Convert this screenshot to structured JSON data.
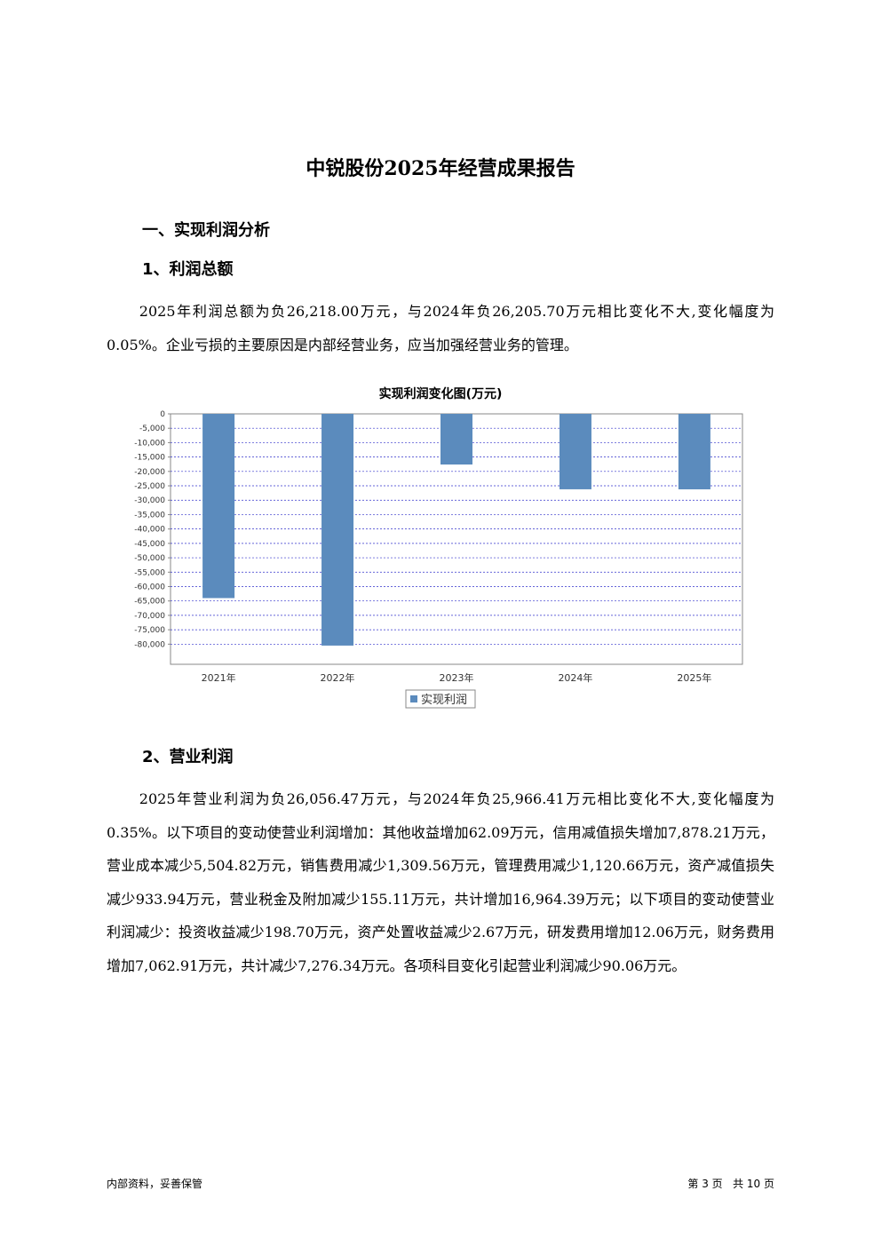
{
  "header": {
    "title": "中锐股份2025年经营成果报告"
  },
  "sections": [
    {
      "heading": "一、实现利润分析"
    },
    {
      "heading": "1、利润总额",
      "paragraphs": [
        "2025年利润总额为负26,218.00万元，与2024年负26,205.70万元相比变化不大,变化幅度为0.05%。企业亏损的主要原因是内部经营业务，应当加强经营业务的管理。"
      ]
    },
    {
      "heading": "2、营业利润",
      "paragraphs": [
        "2025年营业利润为负26,056.47万元，与2024年负25,966.41万元相比变化不大,变化幅度为0.35%。以下项目的变动使营业利润增加：其他收益增加62.09万元，信用减值损失增加7,878.21万元，营业成本减少5,504.82万元，销售费用减少1,309.56万元，管理费用减少1,120.66万元，资产减值损失减少933.94万元，营业税金及附加减少155.11万元，共计增加16,964.39万元；以下项目的变动使营业利润减少：投资收益减少198.70万元，资产处置收益减少2.67万元，研发费用增加12.06万元，财务费用增加7,062.91万元，共计减少7,276.34万元。各项科目变化引起营业利润减少90.06万元。"
      ]
    }
  ],
  "chart_data": {
    "type": "bar",
    "title": "实现利润变化图(万元)",
    "categories": [
      "2021年",
      "2022年",
      "2023年",
      "2024年",
      "2025年"
    ],
    "series": [
      {
        "name": "实现利润",
        "color": "#5b8bbd",
        "values": [
          -64000,
          -80500,
          -17600,
          -26205.7,
          -26218
        ]
      }
    ],
    "ylim": [
      -87000,
      0
    ],
    "yticks": [
      0,
      {
        "value": -5000,
        "label": "-5,000"
      },
      {
        "value": -10000,
        "label": "-10,000"
      },
      {
        "value": -15000,
        "label": "-15,000"
      },
      {
        "value": -20000,
        "label": "-20,000"
      },
      {
        "value": -25000,
        "label": "-25,000"
      },
      {
        "value": -30000,
        "label": "-30,000"
      },
      {
        "value": -35000,
        "label": "-35,000"
      },
      {
        "value": -40000,
        "label": "-40,000"
      },
      {
        "value": -45000,
        "label": "-45,000"
      },
      {
        "value": -50000,
        "label": "-50,000"
      },
      {
        "value": -55000,
        "label": "-55,000"
      },
      {
        "value": -60000,
        "label": "-60,000"
      },
      {
        "value": -65000,
        "label": "-65,000"
      },
      {
        "value": -70000,
        "label": "-70,000"
      },
      {
        "value": -75000,
        "label": "-75,000"
      },
      {
        "value": -80000,
        "label": "-80,000"
      }
    ],
    "grid": true,
    "legend": "bottom"
  },
  "footer": {
    "left": "内部资料，妥善保管",
    "right": "第 3 页   共 10 页"
  }
}
